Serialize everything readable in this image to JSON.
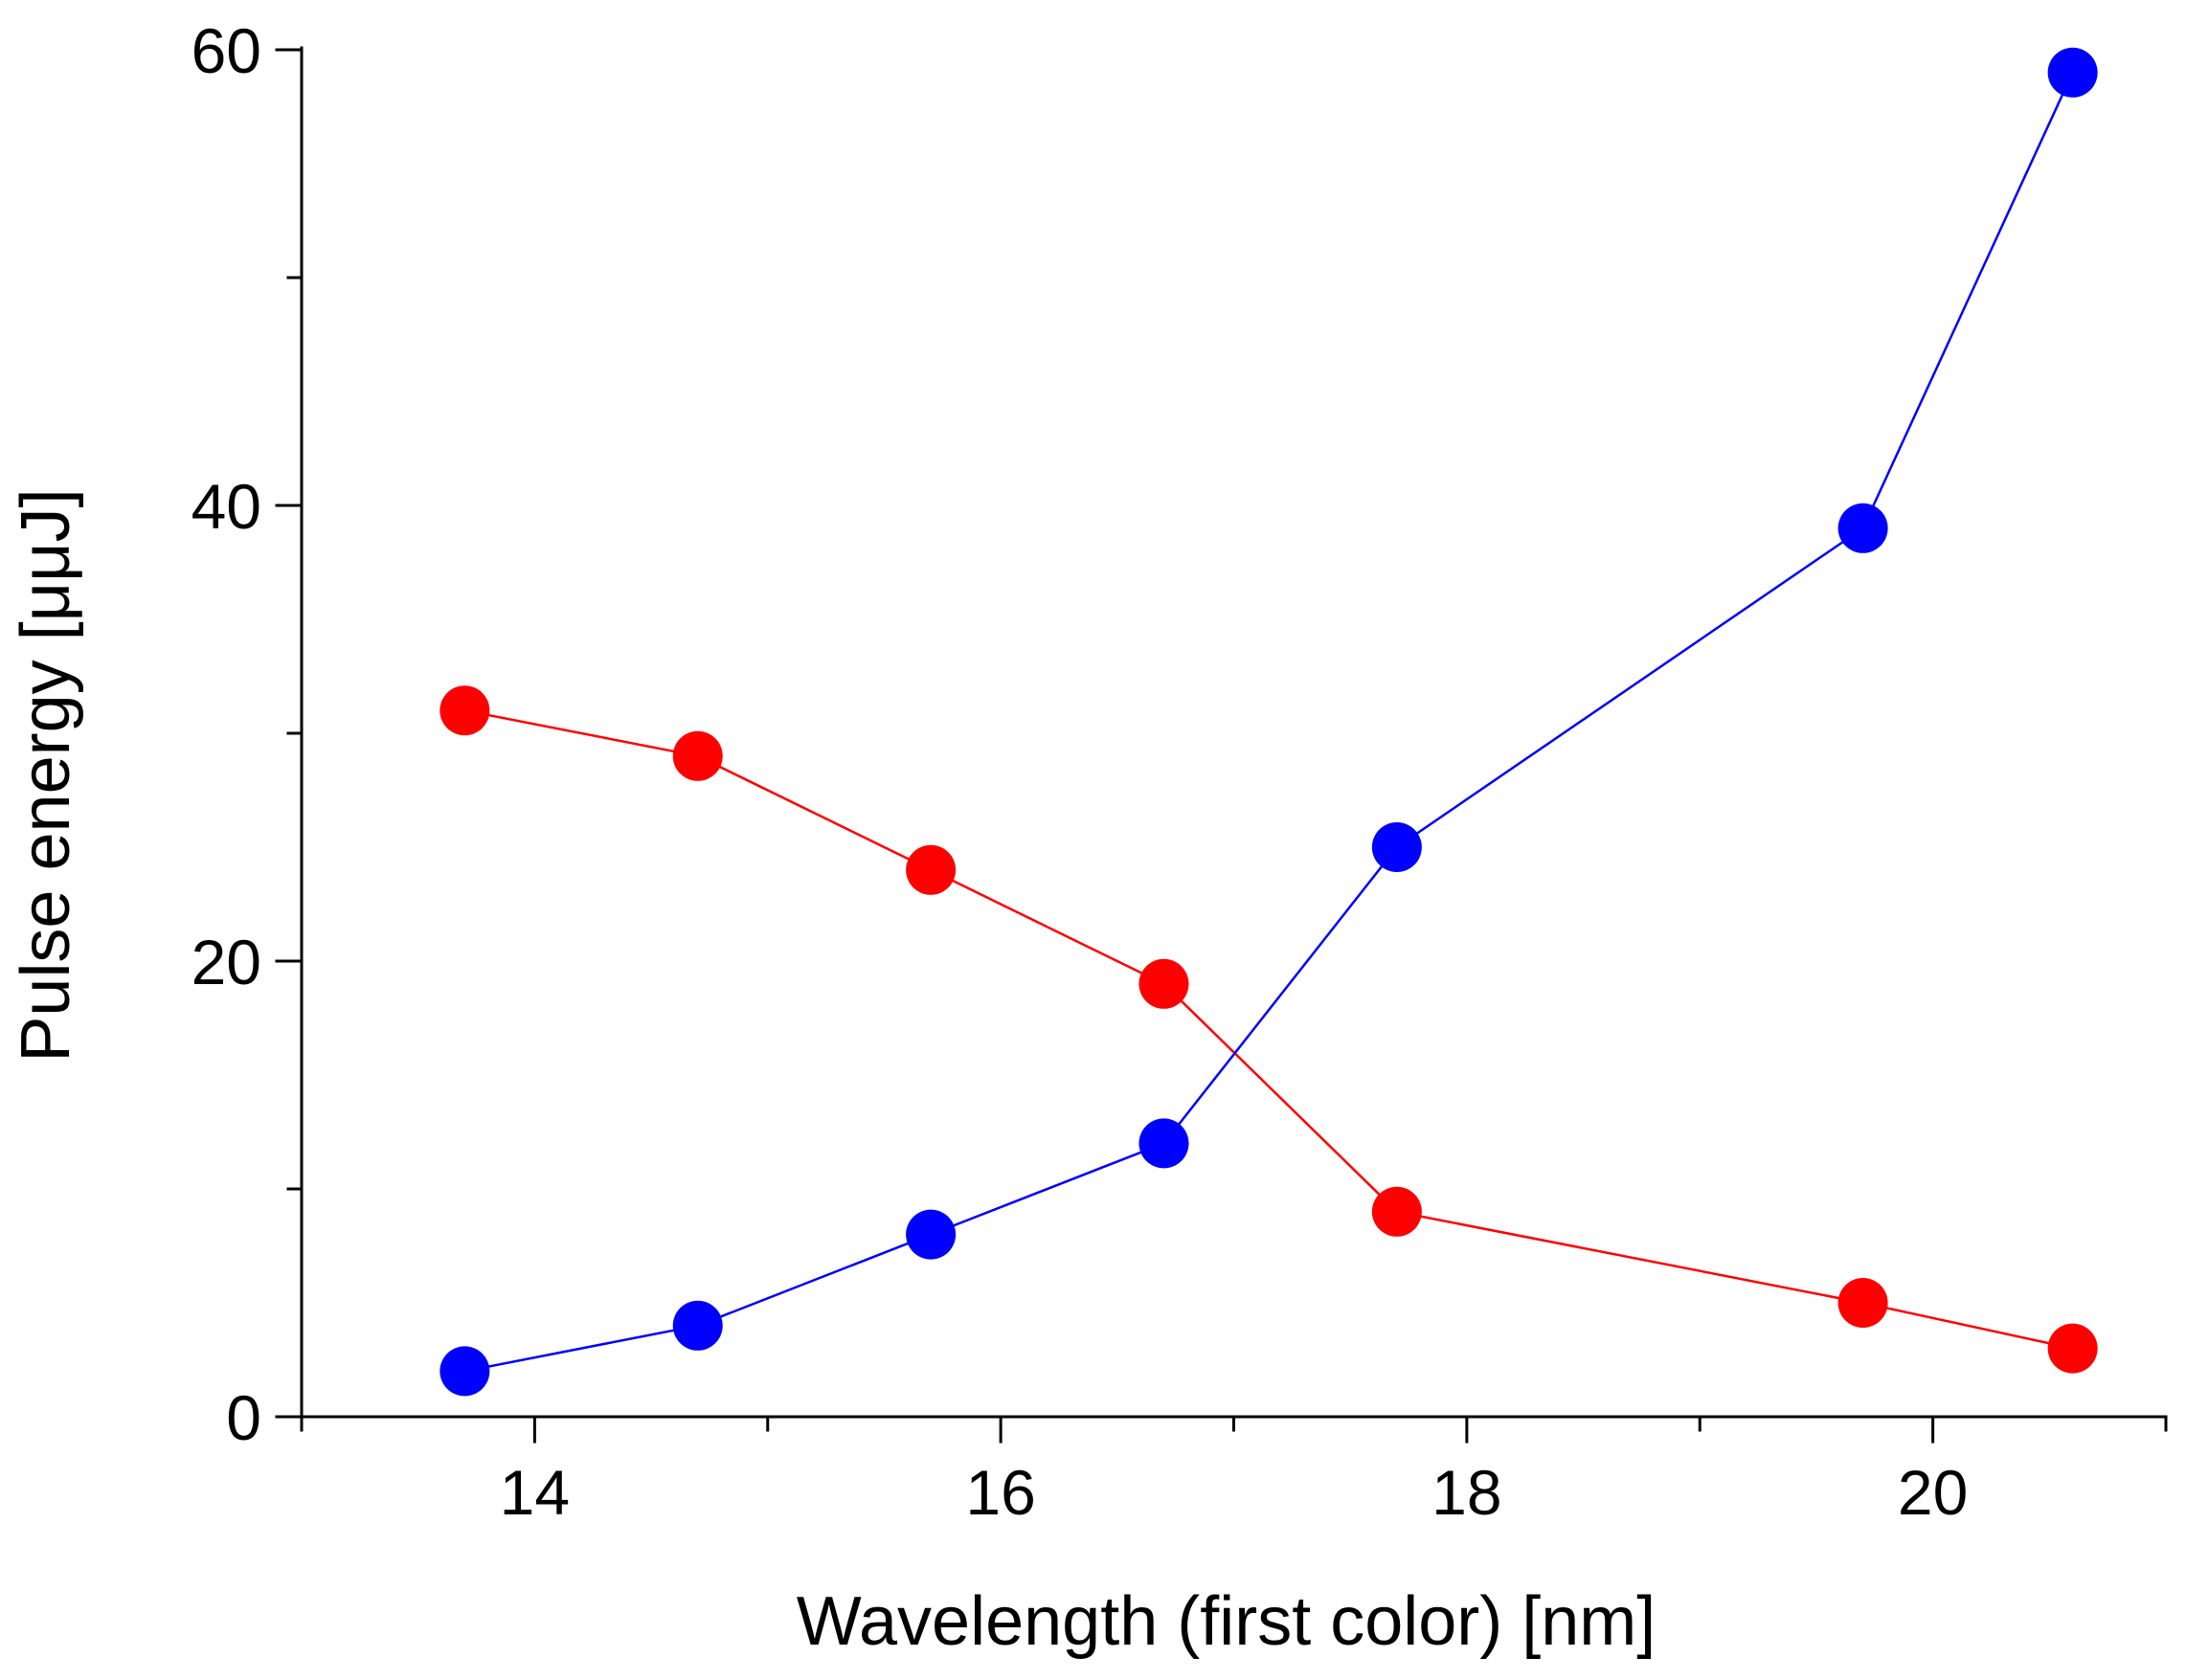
{
  "chart_data": {
    "type": "line",
    "title": "",
    "xlabel": "Wavelength (first color) [nm]",
    "ylabel": "Pulse energy [μμJ]",
    "xlim": [
      13,
      21
    ],
    "ylim": [
      0,
      60
    ],
    "x_ticks": [
      {
        "value": 14,
        "label": "14"
      },
      {
        "value": 16,
        "label": "16"
      },
      {
        "value": 18,
        "label": "18"
      },
      {
        "value": 20,
        "label": "20"
      }
    ],
    "x_minor_ticks": [
      13,
      15,
      17,
      19,
      21
    ],
    "y_ticks": [
      {
        "value": 0,
        "label": "0"
      },
      {
        "value": 20,
        "label": "20"
      },
      {
        "value": 40,
        "label": "40"
      },
      {
        "value": 60,
        "label": "60"
      }
    ],
    "y_minor_ticks": [
      10,
      30,
      50
    ],
    "grid": false,
    "series": [
      {
        "name": "red series",
        "color": "#ff0000",
        "marker": "circle",
        "x": [
          13.7,
          14.7,
          15.7,
          16.7,
          17.7,
          19.7,
          20.6
        ],
        "values": [
          31,
          29,
          24,
          19,
          9,
          5,
          3
        ]
      },
      {
        "name": "blue series",
        "color": "#0000ff",
        "marker": "circle",
        "x": [
          13.7,
          14.7,
          15.7,
          16.7,
          17.7,
          19.7,
          20.6
        ],
        "values": [
          2,
          4,
          8,
          12,
          25,
          39,
          59
        ]
      }
    ]
  }
}
